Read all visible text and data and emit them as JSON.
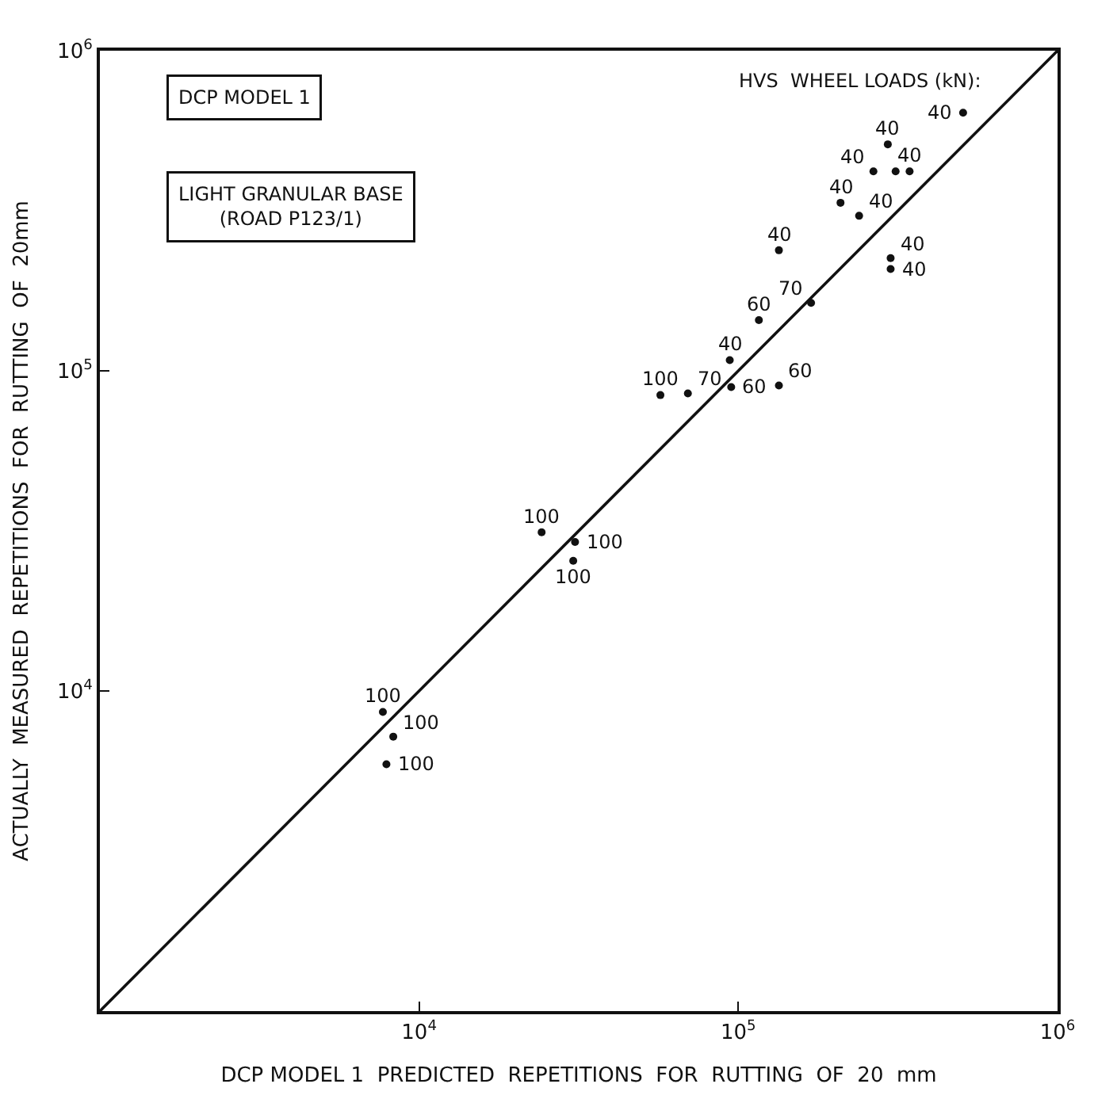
{
  "chart_data": {
    "type": "scatter",
    "xlabel": "DCP MODEL 1  PREDICTED  REPETITIONS  FOR  RUTTING  OF  20  mm",
    "ylabel": "ACTUALLY  MEASURED  REPETITIONS  FOR  RUTTING  OF  20mm",
    "log": "xy",
    "marker": "circle",
    "xlim": [
      1000,
      1000000
    ],
    "ylim": [
      1000,
      1000000
    ],
    "xticks": [
      {
        "value": 10000,
        "label": "10$^{4}$"
      },
      {
        "value": 100000,
        "label": "10$^{5}$"
      },
      {
        "value": 1000000,
        "label": "10$^{6}$"
      }
    ],
    "yticks": [
      {
        "value": 10000,
        "label": "10$^{4}$"
      },
      {
        "value": 100000,
        "label": "10$^{5}$"
      },
      {
        "value": 1000000,
        "label": "10$^{6}$"
      }
    ],
    "series": [
      {
        "color": "#111111",
        "x": [
          506000,
          294000,
          265000,
          311000,
          344000,
          209000,
          134000,
          239000,
          300000,
          300000,
          116000,
          169000,
          94000,
          57000,
          69500,
          95000,
          134000,
          24200,
          30800,
          30400,
          7700,
          8300,
          7900
        ],
        "values": [
          640000,
          510000,
          420000,
          420000,
          420000,
          335000,
          238000,
          305000,
          225000,
          208000,
          144000,
          163000,
          108000,
          84000,
          85000,
          89000,
          90000,
          31300,
          29200,
          25500,
          8600,
          7200,
          5900
        ]
      },
      {
        "type": "line",
        "marker": "none",
        "color": "#111111",
        "x": [
          1000,
          1000000
        ],
        "values": [
          1000,
          1000000
        ]
      }
    ],
    "annotations": [
      "DCP MODEL 1",
      "LIGHT GRANULAR BASE\n(ROAD P123/1)",
      "HVS  WHEEL LOADS (kN):",
      {
        "text": "40",
        "x": 506000,
        "y": 640000
      },
      {
        "text": "40",
        "x": 294000,
        "y": 510000
      },
      {
        "text": "40",
        "x": 265000,
        "y": 420000
      },
      {
        "text": "40",
        "x": 344000,
        "y": 420000
      },
      {
        "text": "40",
        "x": 209000,
        "y": 335000
      },
      {
        "text": "40",
        "x": 134000,
        "y": 238000
      },
      {
        "text": "40",
        "x": 239000,
        "y": 305000
      },
      {
        "text": "40",
        "x": 300000,
        "y": 225000
      },
      {
        "text": "40",
        "x": 300000,
        "y": 208000
      },
      {
        "text": "60",
        "x": 116000,
        "y": 144000
      },
      {
        "text": "70",
        "x": 169000,
        "y": 163000
      },
      {
        "text": "40",
        "x": 94000,
        "y": 108000
      },
      {
        "text": "100",
        "x": 57000,
        "y": 84000
      },
      {
        "text": "70",
        "x": 69500,
        "y": 85000
      },
      {
        "text": "60",
        "x": 95000,
        "y": 89000
      },
      {
        "text": "60",
        "x": 134000,
        "y": 90000
      },
      {
        "text": "100",
        "x": 24200,
        "y": 31300
      },
      {
        "text": "100",
        "x": 30800,
        "y": 29200
      },
      {
        "text": "100",
        "x": 30400,
        "y": 25500
      },
      {
        "text": "100",
        "x": 7700,
        "y": 8600
      },
      {
        "text": "100",
        "x": 8300,
        "y": 7200
      },
      {
        "text": "100",
        "x": 7900,
        "y": 5900
      }
    ]
  }
}
